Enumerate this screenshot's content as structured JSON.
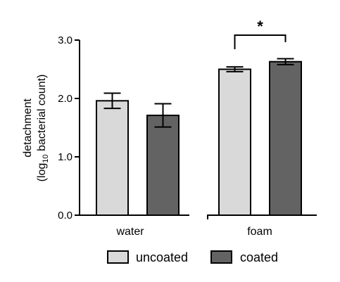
{
  "chart_data": {
    "type": "bar",
    "categories": [
      "water",
      "foam"
    ],
    "series": [
      {
        "name": "uncoated",
        "values": [
          1.96,
          2.5
        ],
        "errors": [
          0.13,
          0.04
        ]
      },
      {
        "name": "coated",
        "values": [
          1.71,
          2.63
        ],
        "errors": [
          0.2,
          0.05
        ]
      }
    ],
    "ylabel_line1": "detachment",
    "ylabel_line2_pre": "(log",
    "ylabel_line2_sub": "10",
    "ylabel_line2_post": " bacterial count)",
    "ylim": [
      0,
      3
    ],
    "yticks": [
      "0.0",
      "1.0",
      "2.0",
      "3.0"
    ],
    "grid": false,
    "legend_position": "bottom",
    "annotation": {
      "text": "*",
      "between": [
        "foam uncoated",
        "foam coated"
      ]
    },
    "colors": {
      "uncoated": "#d9d9d9",
      "coated": "#636363"
    }
  }
}
